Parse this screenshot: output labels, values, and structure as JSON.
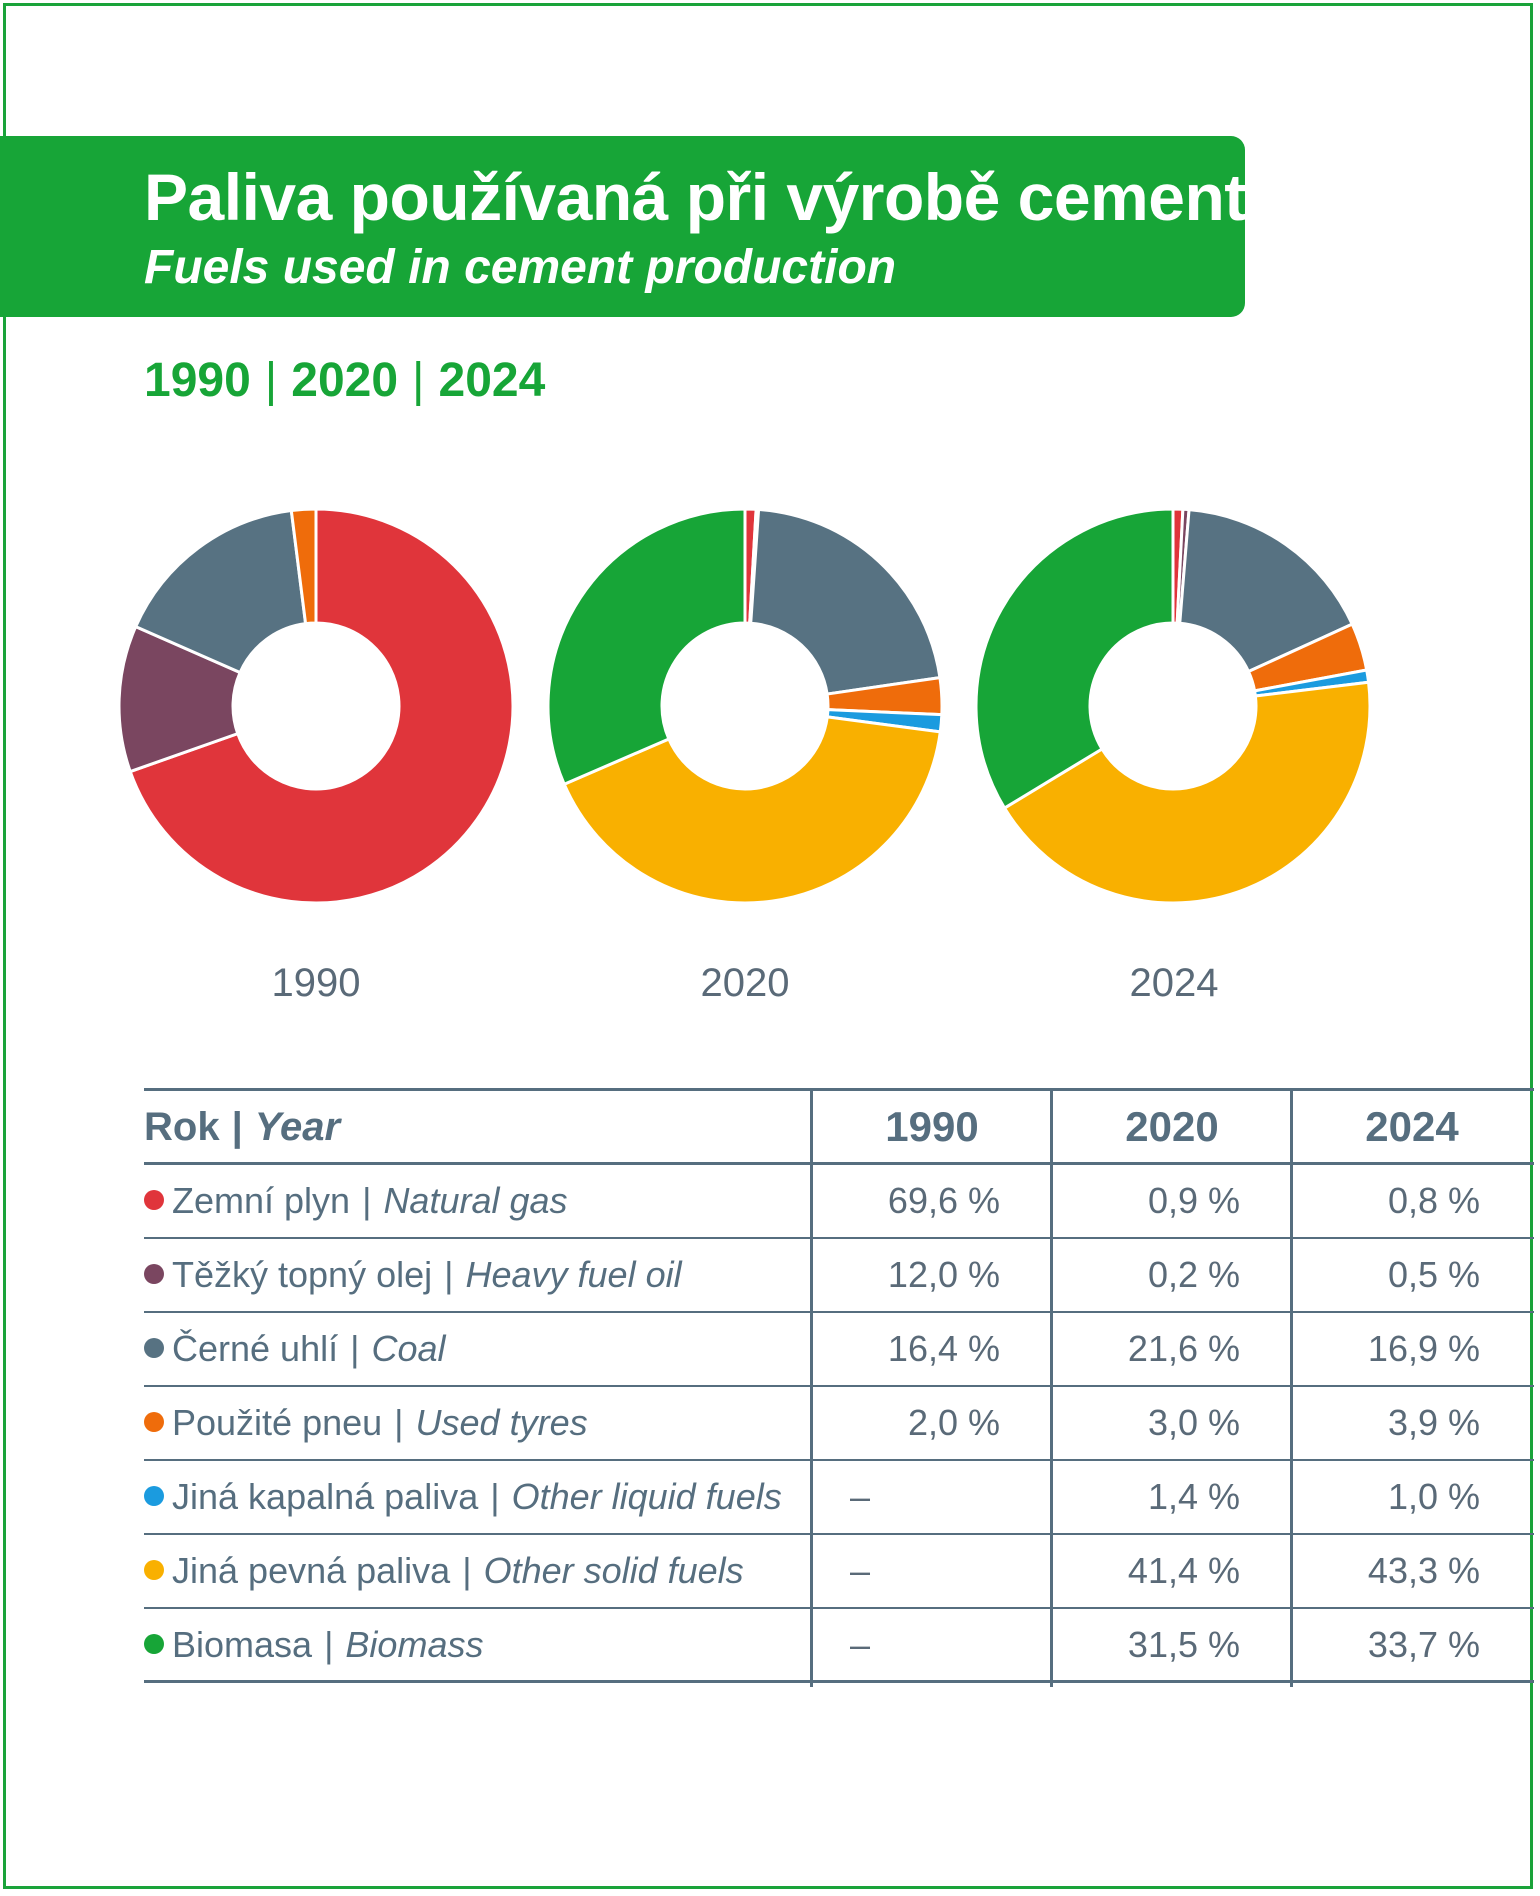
{
  "title": "Paliva používaná při výrobě cementu",
  "subtitle": "Fuels used in cement production",
  "years_heading": [
    "1990",
    "2020",
    "2024"
  ],
  "colors": {
    "natural_gas": "#e0353b",
    "heavy_fuel_oil": "#7a4660",
    "coal": "#577282",
    "used_tyres": "#ef6c0b",
    "other_liquid": "#1b9bdf",
    "other_solid": "#f9b000",
    "biomass": "#17a537"
  },
  "chart_data": [
    {
      "type": "pie",
      "variant": "donut",
      "label": "1990",
      "slices": [
        {
          "key": "natural_gas",
          "value": 69.6
        },
        {
          "key": "heavy_fuel_oil",
          "value": 12.0
        },
        {
          "key": "coal",
          "value": 16.4
        },
        {
          "key": "used_tyres",
          "value": 2.0
        },
        {
          "key": "other_liquid",
          "value": 0
        },
        {
          "key": "other_solid",
          "value": 0
        },
        {
          "key": "biomass",
          "value": 0
        }
      ]
    },
    {
      "type": "pie",
      "variant": "donut",
      "label": "2020",
      "slices": [
        {
          "key": "natural_gas",
          "value": 0.9
        },
        {
          "key": "heavy_fuel_oil",
          "value": 0.2
        },
        {
          "key": "coal",
          "value": 21.6
        },
        {
          "key": "used_tyres",
          "value": 3.0
        },
        {
          "key": "other_liquid",
          "value": 1.4
        },
        {
          "key": "other_solid",
          "value": 41.4
        },
        {
          "key": "biomass",
          "value": 31.5
        }
      ]
    },
    {
      "type": "pie",
      "variant": "donut",
      "label": "2024",
      "slices": [
        {
          "key": "natural_gas",
          "value": 0.8
        },
        {
          "key": "heavy_fuel_oil",
          "value": 0.5
        },
        {
          "key": "coal",
          "value": 16.9
        },
        {
          "key": "used_tyres",
          "value": 3.9
        },
        {
          "key": "other_liquid",
          "value": 1.0
        },
        {
          "key": "other_solid",
          "value": 43.3
        },
        {
          "key": "biomass",
          "value": 33.7
        }
      ]
    }
  ],
  "table": {
    "header": {
      "cz": "Rok",
      "en": "Year",
      "cols": [
        "1990",
        "2020",
        "2024"
      ]
    },
    "rows": [
      {
        "key": "natural_gas",
        "cz": "Zemní plyn",
        "en": "Natural gas",
        "values": [
          "69,6 %",
          "0,9 %",
          "0,8 %"
        ]
      },
      {
        "key": "heavy_fuel_oil",
        "cz": "Těžký topný olej",
        "en": "Heavy fuel oil",
        "values": [
          "12,0 %",
          "0,2 %",
          "0,5 %"
        ]
      },
      {
        "key": "coal",
        "cz": "Černé uhlí",
        "en": "Coal",
        "values": [
          "16,4 %",
          "21,6 %",
          "16,9 %"
        ]
      },
      {
        "key": "used_tyres",
        "cz": "Použité pneu",
        "en": "Used tyres",
        "values": [
          "2,0 %",
          "3,0 %",
          "3,9 %"
        ]
      },
      {
        "key": "other_liquid",
        "cz": "Jiná kapalná paliva",
        "en": "Other liquid fuels",
        "values": [
          "–",
          "1,4 %",
          "1,0 %"
        ]
      },
      {
        "key": "other_solid",
        "cz": "Jiná pevná paliva",
        "en": "Other solid fuels",
        "values": [
          "–",
          "41,4 %",
          "43,3 %"
        ]
      },
      {
        "key": "biomass",
        "cz": "Biomasa",
        "en": "Biomass",
        "values": [
          "–",
          "31,5 %",
          "33,7 %"
        ]
      }
    ]
  }
}
